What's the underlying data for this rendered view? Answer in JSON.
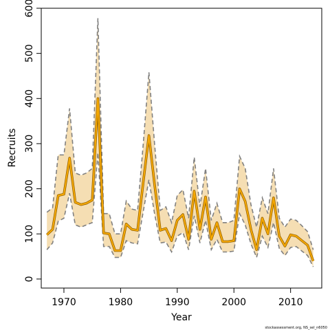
{
  "chart_data": {
    "type": "line",
    "title": "",
    "xlabel": "Year",
    "ylabel": "Recruits",
    "xlim": [
      1966,
      2015.5
    ],
    "ylim": [
      -20,
      600
    ],
    "xticks": [
      1970,
      1980,
      1990,
      2000,
      2010
    ],
    "yticks": [
      0,
      100,
      200,
      300,
      400,
      500,
      600
    ],
    "grid": false,
    "legend": "none",
    "credit": "stockassessment.org, NS_sel_n6050",
    "colors": {
      "line": "#f5a800",
      "line_dark": "#8a5a00",
      "band": "#f5deb3",
      "bound": "#808080"
    },
    "x": [
      1967,
      1968,
      1969,
      1970,
      1971,
      1972,
      1973,
      1974,
      1975,
      1976,
      1977,
      1978,
      1979,
      1980,
      1981,
      1982,
      1983,
      1984,
      1985,
      1986,
      1987,
      1988,
      1989,
      1990,
      1991,
      1992,
      1993,
      1994,
      1995,
      1996,
      1997,
      1998,
      1999,
      2000,
      2001,
      2002,
      2003,
      2004,
      2005,
      2006,
      2007,
      2008,
      2009,
      2010,
      2011,
      2012,
      2013,
      2014
    ],
    "series": [
      {
        "name": "",
        "values": [
          98,
          110,
          185,
          188,
          268,
          170,
          165,
          168,
          175,
          400,
          102,
          100,
          63,
          63,
          122,
          110,
          108,
          215,
          318,
          210,
          108,
          112,
          85,
          130,
          143,
          88,
          195,
          110,
          182,
          88,
          125,
          83,
          83,
          85,
          200,
          172,
          110,
          65,
          135,
          100,
          180,
          95,
          73,
          98,
          95,
          85,
          75,
          40
        ]
      },
      {
        "name": "",
        "values": [
          148,
          158,
          275,
          275,
          378,
          235,
          230,
          235,
          245,
          578,
          145,
          145,
          100,
          100,
          173,
          155,
          152,
          300,
          458,
          300,
          152,
          160,
          125,
          185,
          198,
          135,
          270,
          160,
          245,
          130,
          168,
          125,
          125,
          130,
          272,
          245,
          165,
          115,
          180,
          145,
          245,
          135,
          115,
          133,
          130,
          118,
          105,
          65
        ]
      },
      {
        "name": "",
        "values": [
          65,
          80,
          128,
          135,
          190,
          120,
          115,
          120,
          125,
          280,
          72,
          72,
          48,
          48,
          85,
          80,
          78,
          150,
          220,
          145,
          80,
          82,
          60,
          95,
          103,
          65,
          140,
          80,
          130,
          65,
          88,
          60,
          60,
          62,
          145,
          120,
          78,
          48,
          95,
          70,
          125,
          68,
          52,
          70,
          72,
          62,
          52,
          27
        ]
      }
    ]
  }
}
